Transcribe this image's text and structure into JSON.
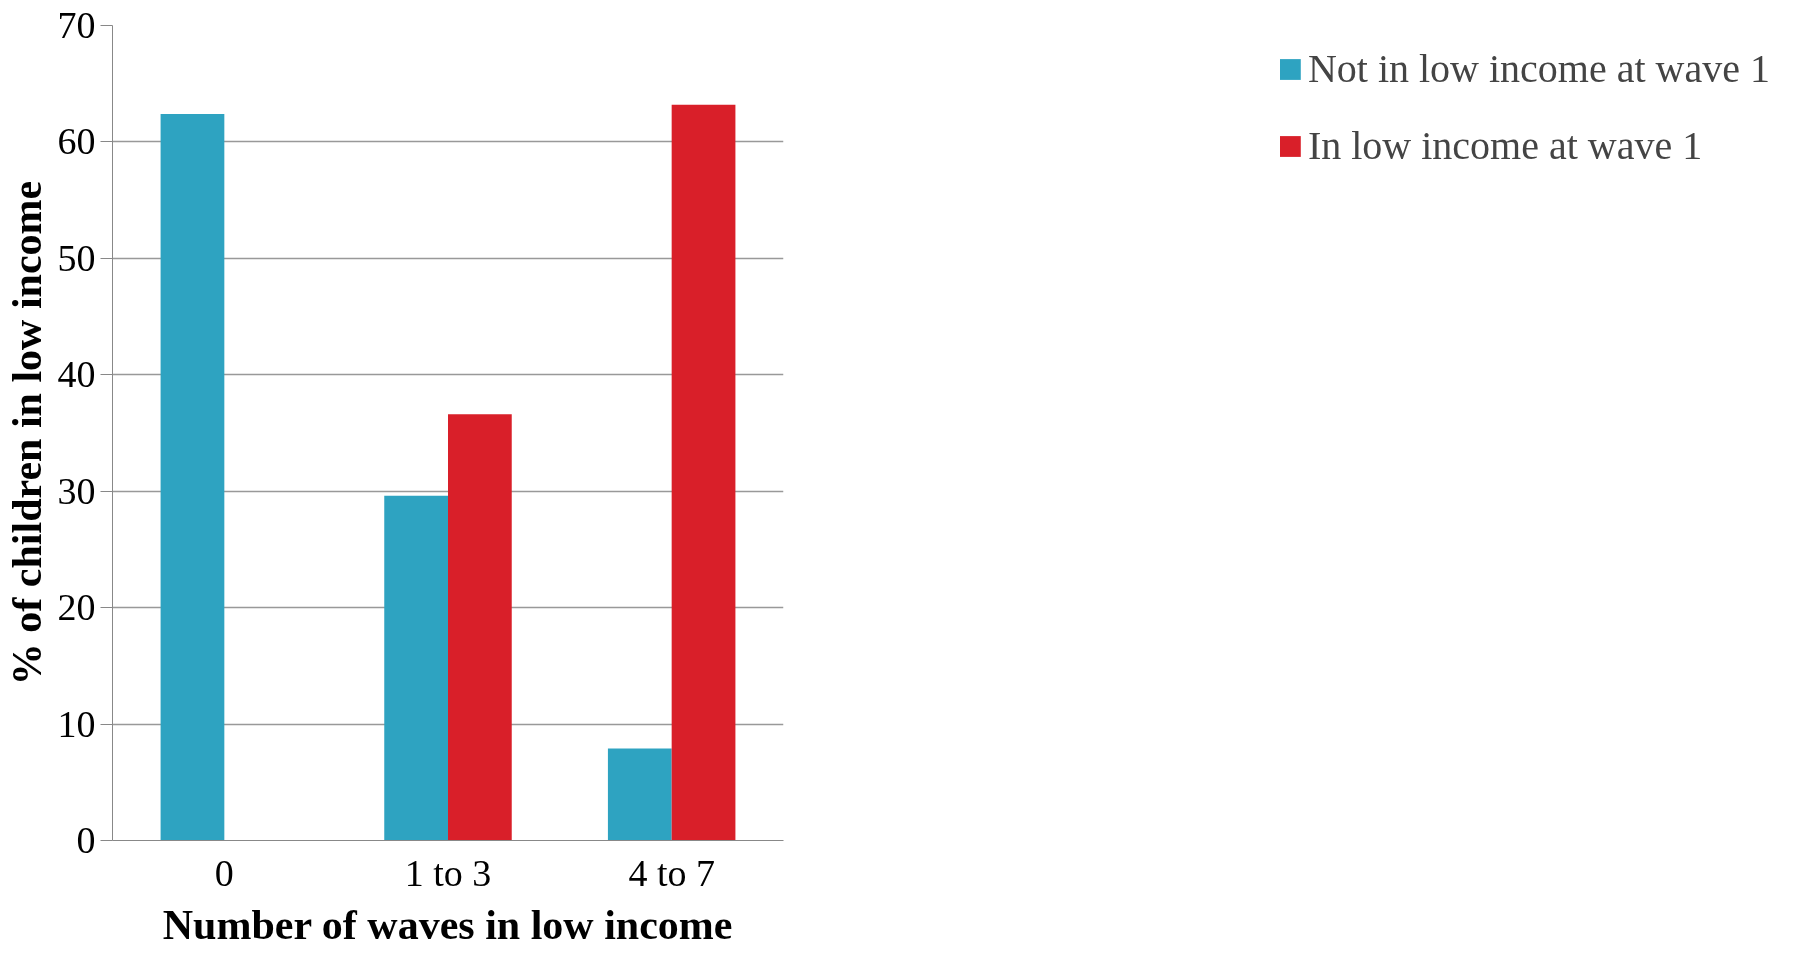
{
  "chart_data": {
    "type": "bar",
    "xlabel": "Number of waves in low income",
    "ylabel": "% of children in low income",
    "categories": [
      "0",
      "1 to 3",
      "4 to 7"
    ],
    "series": [
      {
        "name": "Not in low income at wave 1",
        "color": "#2ea3c1",
        "values": [
          62.4,
          29.6,
          7.9
        ]
      },
      {
        "name": "In low income at wave 1",
        "color": "#d91f29",
        "values": [
          null,
          36.6,
          63.2
        ]
      }
    ],
    "ylim": [
      0,
      70
    ],
    "yticks": [
      0,
      10,
      20,
      30,
      40,
      50,
      60,
      70
    ],
    "grid": "y",
    "legend": "right"
  }
}
